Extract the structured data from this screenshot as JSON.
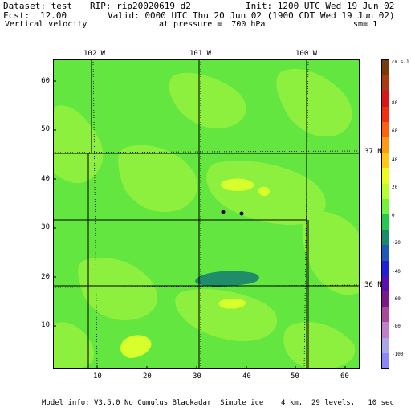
{
  "header": {
    "dataset": "Dataset: test",
    "rip": "RIP: rip20020619 d2",
    "init": "Init: 1200 UTC Wed 19 Jun 02",
    "fcst_label": "Fcst:",
    "fcst_value": "12.00",
    "valid": "Valid: 0000 UTC Thu 20 Jun 02 (1900 CDT Wed 19 Jun 02)",
    "field": "Vertical velocity",
    "pressure": "at pressure =  700 hPa",
    "sm": "sm= 1"
  },
  "axes": {
    "y_ticks": [
      "60",
      "50",
      "40",
      "30",
      "20",
      "10"
    ],
    "x_ticks": [
      "10",
      "20",
      "30",
      "40",
      "50",
      "60"
    ],
    "lon_labels": [
      "102 W",
      "101 W",
      "100 W"
    ],
    "lat_labels": [
      "37 N",
      "36 N"
    ]
  },
  "colorbar": {
    "units": "cm s-1",
    "labels": [
      "80",
      "60",
      "40",
      "20",
      "0",
      "-20",
      "-40",
      "-60",
      "-80",
      "-100"
    ],
    "colors": [
      "#7a3a10",
      "#a83a14",
      "#d81818",
      "#f03010",
      "#ff6010",
      "#ff9a14",
      "#ffc818",
      "#e8ff20",
      "#b8ff30",
      "#78f040",
      "#28c850",
      "#1a8a6a",
      "#205ab8",
      "#2020d8",
      "#5a10b0",
      "#7a1a88",
      "#a84a98",
      "#c080c8",
      "#a8a8e8",
      "#8888f8"
    ]
  },
  "footer": {
    "model_info": "Model info: V3.5.0 No Cumulus Blackadar  Simple ice    4 km,  29 levels,   10 sec"
  }
}
